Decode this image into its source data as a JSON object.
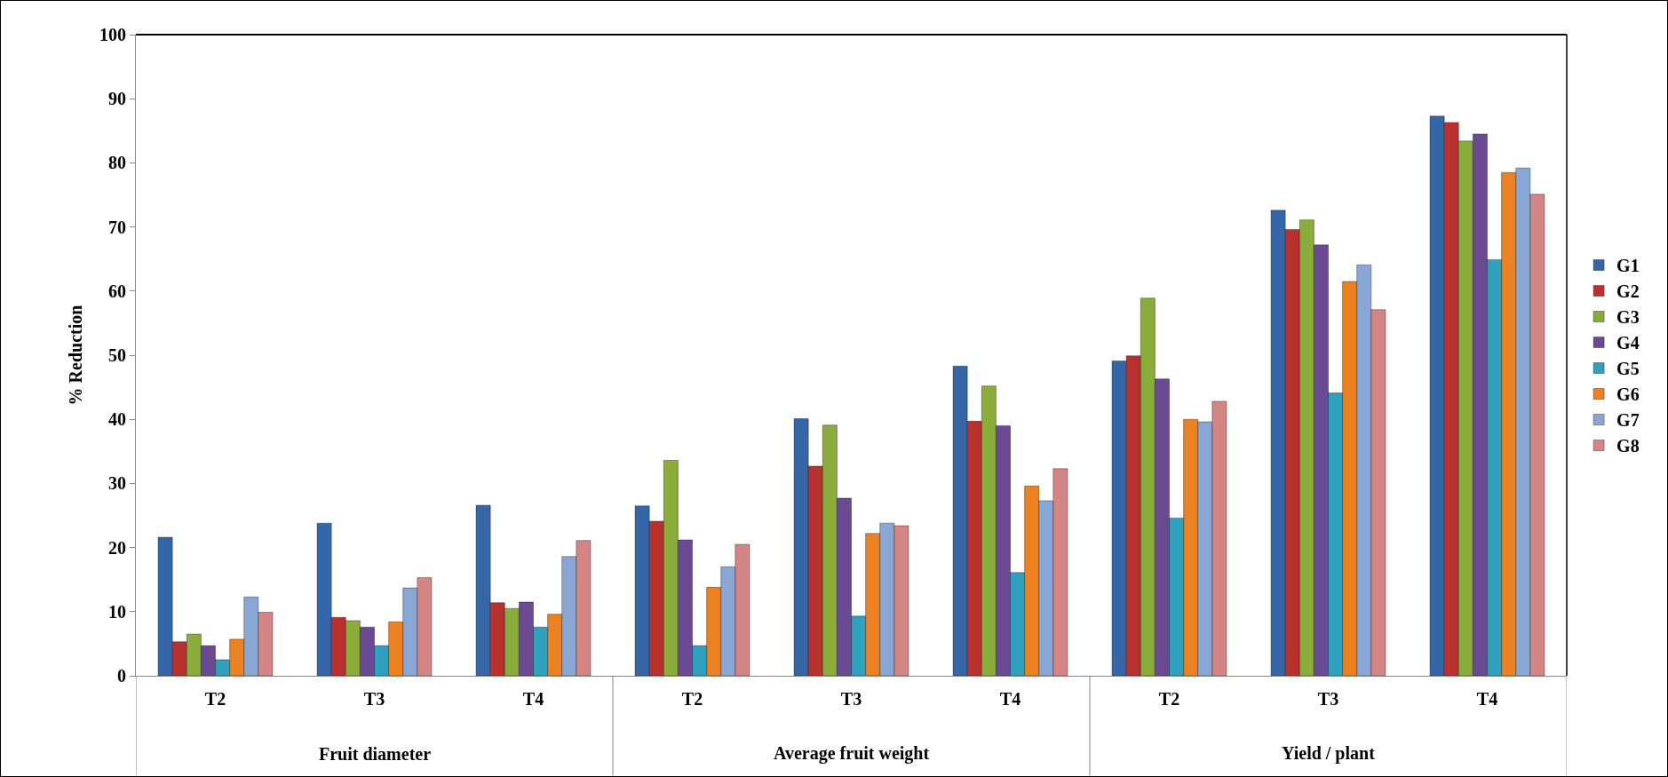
{
  "chart_data": {
    "type": "bar",
    "ylabel": "% Reduction",
    "categories": [
      "T2",
      "T3",
      "T4",
      "T2",
      "T3",
      "T4",
      "T2",
      "T3",
      "T4"
    ],
    "annotations": [
      "Fruit diameter",
      "Average fruit weight",
      "Yield / plant"
    ],
    "series": [
      {
        "name": "G1",
        "color": "#3466a8",
        "values": [
          21.6,
          23.8,
          26.6,
          26.5,
          40.1,
          48.3,
          49.1,
          72.6,
          87.3
        ]
      },
      {
        "name": "G2",
        "color": "#b8312f",
        "values": [
          5.3,
          9.1,
          11.4,
          24.1,
          32.7,
          39.7,
          49.9,
          69.6,
          86.3
        ]
      },
      {
        "name": "G3",
        "color": "#8aac3a",
        "values": [
          6.5,
          8.6,
          10.5,
          33.6,
          39.1,
          45.2,
          58.9,
          71.1,
          83.4
        ]
      },
      {
        "name": "G4",
        "color": "#6b4a94",
        "values": [
          4.7,
          7.6,
          11.5,
          21.2,
          27.7,
          39.0,
          46.3,
          67.2,
          84.5
        ]
      },
      {
        "name": "G5",
        "color": "#2fa0bd",
        "values": [
          2.5,
          4.7,
          7.6,
          4.7,
          9.3,
          16.1,
          24.6,
          44.1,
          64.9
        ]
      },
      {
        "name": "G6",
        "color": "#ec8122",
        "values": [
          5.7,
          8.4,
          9.6,
          13.8,
          22.2,
          29.6,
          40.0,
          61.5,
          78.5
        ]
      },
      {
        "name": "G7",
        "color": "#8aa6d4",
        "values": [
          12.3,
          13.7,
          18.6,
          17.0,
          23.8,
          27.3,
          39.6,
          64.1,
          79.2
        ]
      },
      {
        "name": "G8",
        "color": "#d48585",
        "values": [
          9.9,
          15.3,
          21.1,
          20.5,
          23.4,
          32.3,
          42.8,
          57.1,
          75.1
        ]
      }
    ],
    "ylim": [
      0,
      100
    ],
    "yticks": [
      0,
      10,
      20,
      30,
      40,
      50,
      60,
      70,
      80,
      90,
      100
    ],
    "grid": false,
    "legend": "right"
  }
}
